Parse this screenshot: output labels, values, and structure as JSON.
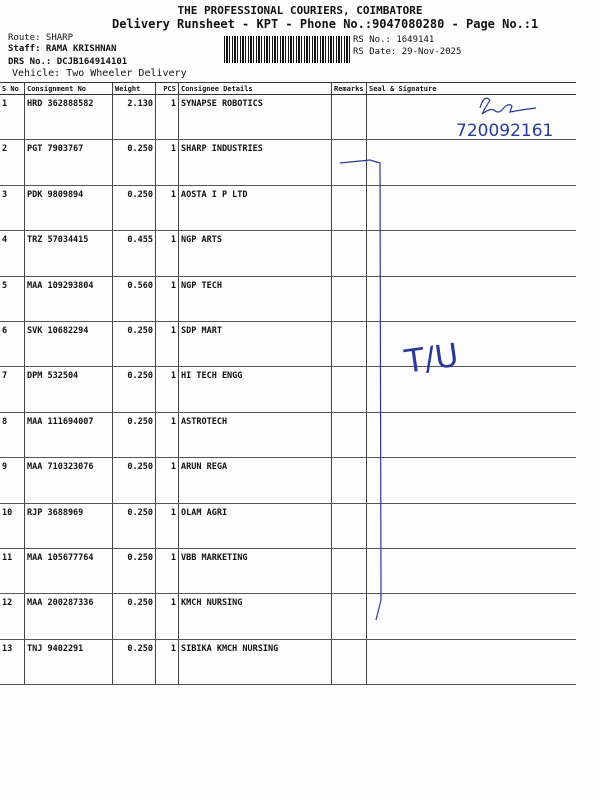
{
  "header": {
    "company": "THE PROFESSIONAL COURIERS, COIMBATORE",
    "title": "Delivery Runsheet - KPT - Phone No.:9047080280 - Page No.:1"
  },
  "meta": {
    "route": "Route: SHARP",
    "staff": "Staff: RAMA KRISHNAN",
    "drs": "DRS No.: DCJB164914101",
    "vehicle": "Vehicle: Two Wheeler Delivery",
    "rs_no": "RS No.: 1649141",
    "rs_date": "RS Date: 29-Nov-2025"
  },
  "columns": [
    "S No",
    "Consignment No",
    "Weight",
    "PCS",
    "Consignee Details",
    "Remarks",
    "Seal & Signature"
  ],
  "rows": [
    {
      "sno": "1",
      "cn": "HRD 362888582",
      "wt": "2.130",
      "pcs": "1",
      "name": "SYNAPSE ROBOTICS"
    },
    {
      "sno": "2",
      "cn": "PGT 7903767",
      "wt": "0.250",
      "pcs": "1",
      "name": "SHARP INDUSTRIES"
    },
    {
      "sno": "3",
      "cn": "PDK 9809894",
      "wt": "0.250",
      "pcs": "1",
      "name": "AOSTA I P LTD"
    },
    {
      "sno": "4",
      "cn": "TRZ 57034415",
      "wt": "0.455",
      "pcs": "1",
      "name": "NGP ARTS"
    },
    {
      "sno": "5",
      "cn": "MAA 109293804",
      "wt": "0.560",
      "pcs": "1",
      "name": "NGP TECH"
    },
    {
      "sno": "6",
      "cn": "SVK 10682294",
      "wt": "0.250",
      "pcs": "1",
      "name": "SDP MART"
    },
    {
      "sno": "7",
      "cn": "DPM 532504",
      "wt": "0.250",
      "pcs": "1",
      "name": "HI TECH ENGG"
    },
    {
      "sno": "8",
      "cn": "MAA 111694007",
      "wt": "0.250",
      "pcs": "1",
      "name": "ASTROTECH"
    },
    {
      "sno": "9",
      "cn": "MAA 710323076",
      "wt": "0.250",
      "pcs": "1",
      "name": "ARUN REGA"
    },
    {
      "sno": "10",
      "cn": "RJP 3688969",
      "wt": "0.250",
      "pcs": "1",
      "name": "OLAM AGRI"
    },
    {
      "sno": "11",
      "cn": "MAA 105677764",
      "wt": "0.250",
      "pcs": "1",
      "name": "VBB MARKETING"
    },
    {
      "sno": "12",
      "cn": "MAA 200287336",
      "wt": "0.250",
      "pcs": "1",
      "name": "KMCH NURSING"
    },
    {
      "sno": "13",
      "cn": "TNJ 9402291",
      "wt": "0.250",
      "pcs": "1",
      "name": "SIBIKA KMCH NURSING"
    }
  ],
  "handwriting": {
    "signature_number": "720092161",
    "mark": "T/U",
    "ink_color": "#2a3a9a"
  }
}
